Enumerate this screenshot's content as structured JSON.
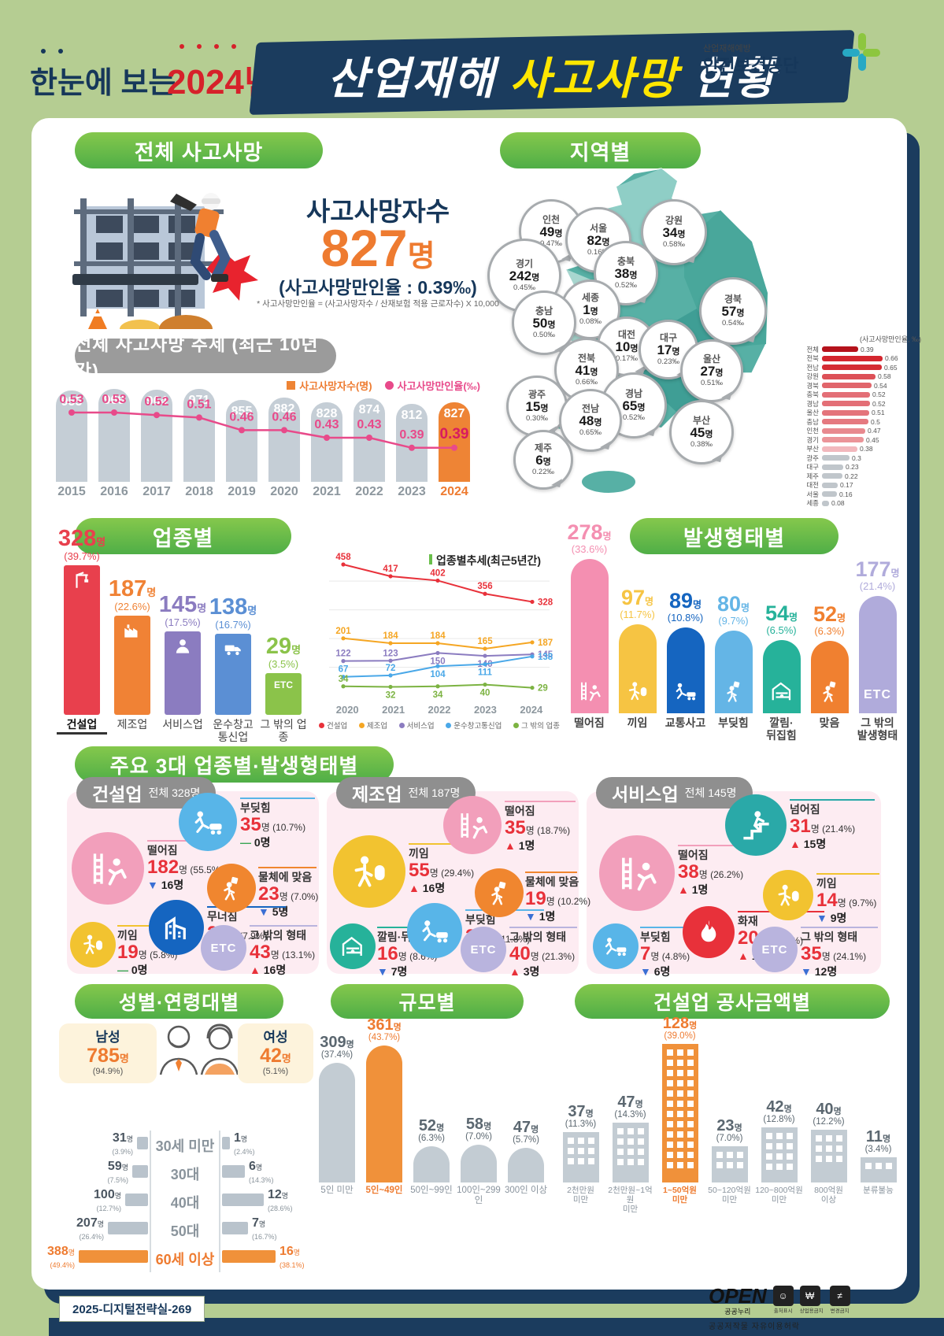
{
  "header": {
    "pre_title": "한눈에 보는",
    "year": "2024년",
    "title_part1": "산업재해 ",
    "title_part2": "사고사망",
    "title_part3": " 현황",
    "org_small": "산업재해예방",
    "org_name": "안전보건공단"
  },
  "total": {
    "section_title": "전체 사고사망",
    "label": "사고사망자수",
    "value": "827",
    "unit": "명",
    "rate_line": "(사고사망만인율 : 0.39‰)",
    "footnote": "* 사고사망만인율 = (사고사망자수 / 산재보험 적용 근로자수) X 10,000"
  },
  "region": {
    "section_title": "지역별",
    "callouts": [
      {
        "name": "인천",
        "count": "49",
        "rate": "0.47‰"
      },
      {
        "name": "서울",
        "count": "82",
        "rate": "0.16‰"
      },
      {
        "name": "강원",
        "count": "34",
        "rate": "0.58‰"
      },
      {
        "name": "경기",
        "count": "242",
        "rate": "0.45‰"
      },
      {
        "name": "충북",
        "count": "38",
        "rate": "0.52‰"
      },
      {
        "name": "세종",
        "count": "1",
        "rate": "0.08‰"
      },
      {
        "name": "충남",
        "count": "50",
        "rate": "0.50‰"
      },
      {
        "name": "대전",
        "count": "10",
        "rate": "0.17‰"
      },
      {
        "name": "대구",
        "count": "17",
        "rate": "0.23‰"
      },
      {
        "name": "경북",
        "count": "57",
        "rate": "0.54‰"
      },
      {
        "name": "전북",
        "count": "41",
        "rate": "0.66‰"
      },
      {
        "name": "울산",
        "count": "27",
        "rate": "0.51‰"
      },
      {
        "name": "광주",
        "count": "15",
        "rate": "0.30‰"
      },
      {
        "name": "경남",
        "count": "65",
        "rate": "0.52‰"
      },
      {
        "name": "전남",
        "count": "48",
        "rate": "0.65‰"
      },
      {
        "name": "부산",
        "count": "45",
        "rate": "0.38‰"
      },
      {
        "name": "제주",
        "count": "6",
        "rate": "0.22‰"
      }
    ],
    "unit": "명"
  },
  "trend": {
    "section_title": "전체 사고사망 추세 (최근 10년간)"
  },
  "sections": {
    "industry": "업종별",
    "accident_type": "발생형태별",
    "top3": "주요 3대 업종별·발생형태별",
    "gender_age": "성별·연령대별",
    "size": "규모별",
    "construction_cost": "건설업 공사금액별"
  },
  "labels": {
    "etc": "ETC",
    "unit": "명"
  },
  "top3": {
    "panels": [
      {
        "name": "건설업",
        "total": "전체 328명",
        "items": [
          {
            "label": "떨어짐",
            "value": "182",
            "pct": "(55.5%)",
            "dir": "down",
            "change": "16명",
            "icon": "falling",
            "color": "#f29fbb"
          },
          {
            "label": "부딪힘",
            "value": "35",
            "pct": "(10.7%)",
            "dir": "flat",
            "change": "0명",
            "icon": "bump",
            "color": "#58b5e8"
          },
          {
            "label": "물체에 맞음",
            "value": "23",
            "pct": "(7.0%)",
            "dir": "down",
            "change": "5명",
            "icon": "hit",
            "color": "#f0862f"
          },
          {
            "label": "무너짐",
            "value": "26",
            "pct": "(7.9%)",
            "dir": "down",
            "change": "1명",
            "icon": "collapse",
            "color": "#1565c0"
          },
          {
            "label": "끼임",
            "value": "19",
            "pct": "(5.8%)",
            "dir": "flat",
            "change": "0명",
            "icon": "pinch",
            "color": "#f2c330"
          },
          {
            "label": "그 밖의 형태",
            "value": "43",
            "pct": "(13.1%)",
            "dir": "up",
            "change": "16명",
            "icon": "etc",
            "color": "#b9b4de"
          }
        ]
      },
      {
        "name": "제조업",
        "total": "전체 187명",
        "items": [
          {
            "label": "끼임",
            "value": "55",
            "pct": "(29.4%)",
            "dir": "up",
            "change": "16명",
            "icon": "pinch",
            "color": "#f2c330"
          },
          {
            "label": "떨어짐",
            "value": "35",
            "pct": "(18.7%)",
            "dir": "up",
            "change": "1명",
            "icon": "falling",
            "color": "#f29fbb"
          },
          {
            "label": "물체에 맞음",
            "value": "19",
            "pct": "(10.2%)",
            "dir": "down",
            "change": "1명",
            "icon": "hit",
            "color": "#f0862f"
          },
          {
            "label": "부딪힘",
            "value": "22",
            "pct": "(11.8%)",
            "dir": "up",
            "change": "10명",
            "icon": "bump",
            "color": "#58b5e8"
          },
          {
            "label": "깔림·뒤집힘",
            "value": "16",
            "pct": "(8.6%)",
            "dir": "down",
            "change": "7명",
            "icon": "crush",
            "color": "#26b29a"
          },
          {
            "label": "그 밖의 형태",
            "value": "40",
            "pct": "(21.3%)",
            "dir": "up",
            "change": "3명",
            "icon": "etc",
            "color": "#b9b4de"
          }
        ]
      },
      {
        "name": "서비스업",
        "total": "전체 145명",
        "items": [
          {
            "label": "떨어짐",
            "value": "38",
            "pct": "(26.2%)",
            "dir": "up",
            "change": "1명",
            "icon": "falling",
            "color": "#f29fbb"
          },
          {
            "label": "넘어짐",
            "value": "31",
            "pct": "(21.4%)",
            "dir": "up",
            "change": "15명",
            "icon": "slip",
            "color": "#2aa9a8"
          },
          {
            "label": "끼임",
            "value": "14",
            "pct": "(9.7%)",
            "dir": "down",
            "change": "9명",
            "icon": "pinch",
            "color": "#f2c330"
          },
          {
            "label": "화재",
            "value": "20",
            "pct": "(13.8%)",
            "dir": "up",
            "change": "16명",
            "icon": "fire",
            "color": "#e8313a"
          },
          {
            "label": "부딪힘",
            "value": "7",
            "pct": "(4.8%)",
            "dir": "down",
            "change": "6명",
            "icon": "bump",
            "color": "#58b5e8"
          },
          {
            "label": "그 밖의 형태",
            "value": "35",
            "pct": "(24.1%)",
            "dir": "down",
            "change": "12명",
            "icon": "etc",
            "color": "#b9b4de"
          }
        ]
      }
    ]
  },
  "gender": {
    "male_label": "남성",
    "male_value": "785",
    "male_pct": "(94.9%)",
    "female_label": "여성",
    "female_value": "42",
    "female_pct": "(5.1%)",
    "unit": "명"
  },
  "footer": {
    "doc_id": "2025-디지털전략실-269",
    "open": "OPEN",
    "nuri": "공공누리",
    "caption": "공공저작물 자유이용허락",
    "icon_labels": [
      "출처표시",
      "상업용금지",
      "변경금지"
    ]
  },
  "chart_data": [
    {
      "id": "yearly_trend",
      "type": "bar+line",
      "title": "전체 사고사망 추세 (최근 10년간)",
      "categories": [
        "2015",
        "2016",
        "2017",
        "2018",
        "2019",
        "2020",
        "2021",
        "2022",
        "2023",
        "2024"
      ],
      "series": [
        {
          "name": "사고사망자수(명)",
          "type": "bar",
          "values": [
            955,
            969,
            964,
            971,
            855,
            882,
            828,
            874,
            812,
            827
          ],
          "color": "#c5ced6",
          "highlight_color": "#ee8435",
          "highlight_index": 9
        },
        {
          "name": "사고사망만인율(‰)",
          "type": "line",
          "values": [
            0.53,
            0.53,
            0.52,
            0.51,
            0.46,
            0.46,
            0.43,
            0.43,
            0.39,
            0.39
          ],
          "color": "#e84a8a"
        }
      ],
      "legend_position": "top-right"
    },
    {
      "id": "region_rate",
      "type": "bar",
      "title": "(사고사망만인율, ‰)",
      "orientation": "horizontal",
      "categories": [
        "전체",
        "전북",
        "전남",
        "강원",
        "경북",
        "충북",
        "경남",
        "울산",
        "충남",
        "인천",
        "경기",
        "부산",
        "광주",
        "대구",
        "제주",
        "대전",
        "서울",
        "세종"
      ],
      "values": [
        0.39,
        0.66,
        0.65,
        0.58,
        0.54,
        0.52,
        0.52,
        0.51,
        0.5,
        0.47,
        0.45,
        0.38,
        0.3,
        0.23,
        0.22,
        0.17,
        0.16,
        0.08
      ],
      "xlim": [
        0,
        0.7
      ]
    },
    {
      "id": "industry",
      "type": "bar",
      "title": "업종별",
      "categories": [
        "건설업",
        "제조업",
        "서비스업",
        "운수창고\n통신업",
        "그 밖의 업종"
      ],
      "values": [
        328,
        187,
        145,
        138,
        29
      ],
      "pcts": [
        "(39.7%)",
        "(22.6%)",
        "(17.5%)",
        "(16.7%)",
        "(3.5%)"
      ],
      "colors": [
        "#e8404d",
        "#f08235",
        "#8b7cc0",
        "#5b8fd4",
        "#8bc34a"
      ],
      "icons": [
        "crane",
        "factory",
        "service",
        "truck",
        "etc"
      ]
    },
    {
      "id": "industry_trend",
      "type": "line",
      "title": "업종별추세(최근5년간)",
      "x": [
        "2020",
        "2021",
        "2022",
        "2023",
        "2024"
      ],
      "series": [
        {
          "name": "건설업",
          "values": [
            458,
            417,
            402,
            356,
            328
          ],
          "color": "#e8313a"
        },
        {
          "name": "제조업",
          "values": [
            201,
            184,
            184,
            165,
            187
          ],
          "color": "#f5a623"
        },
        {
          "name": "서비스업",
          "values": [
            122,
            123,
            150,
            140,
            145
          ],
          "color": "#8b7cc0"
        },
        {
          "name": "운수창고통신업",
          "values": [
            67,
            72,
            104,
            111,
            138
          ],
          "color": "#4aa8e8"
        },
        {
          "name": "그 밖의 업종",
          "values": [
            34,
            32,
            34,
            40,
            29
          ],
          "color": "#7cb342"
        }
      ],
      "legend_position": "bottom",
      "grid": true
    },
    {
      "id": "accident_type",
      "type": "bar",
      "title": "발생형태별",
      "categories": [
        "떨어짐",
        "끼임",
        "교통사고",
        "부딪힘",
        "깔림·\n뒤집힘",
        "맞음",
        "그 밖의\n발생형태"
      ],
      "values": [
        278,
        97,
        89,
        80,
        54,
        52,
        177
      ],
      "pcts": [
        "(33.6%)",
        "(11.7%)",
        "(10.8%)",
        "(9.7%)",
        "(6.5%)",
        "(6.3%)",
        "(21.4%)"
      ],
      "colors": [
        "#f48fb1",
        "#f6c443",
        "#1565c0",
        "#64b5e6",
        "#26b29a",
        "#f08030",
        "#b0abdb"
      ],
      "icons": [
        "falling",
        "pinch",
        "bump",
        "hit",
        "crush",
        "hit",
        "etc"
      ]
    },
    {
      "id": "gender_age",
      "type": "pyramid",
      "categories": [
        "30세 미만",
        "30대",
        "40대",
        "50대",
        "60세 이상"
      ],
      "series": [
        {
          "name": "남성",
          "values": [
            31,
            59,
            100,
            207,
            388
          ],
          "pcts": [
            "(3.9%)",
            "(7.5%)",
            "(12.7%)",
            "(26.4%)",
            "(49.4%)"
          ]
        },
        {
          "name": "여성",
          "values": [
            1,
            6,
            12,
            7,
            16
          ],
          "pcts": [
            "(2.4%)",
            "(14.3%)",
            "(28.6%)",
            "(16.7%)",
            "(38.1%)"
          ]
        }
      ],
      "highlight_category": "60세 이상"
    },
    {
      "id": "size",
      "type": "bar",
      "title": "규모별",
      "categories": [
        "5인 미만",
        "5인~49인",
        "50인~99인",
        "100인~299인",
        "300인 이상"
      ],
      "values": [
        309,
        361,
        52,
        58,
        47
      ],
      "pcts": [
        "(37.4%)",
        "(43.7%)",
        "(6.3%)",
        "(7.0%)",
        "(5.7%)"
      ],
      "highlight_index": 1
    },
    {
      "id": "construction_cost",
      "type": "bar",
      "title": "건설업 공사금액별",
      "categories": [
        "2천만원\n미만",
        "2천만원~1억원\n미만",
        "1~50억원\n미만",
        "50~120억원\n미만",
        "120~800억원\n미만",
        "800억원\n이상",
        "분류불능"
      ],
      "values": [
        37,
        47,
        128,
        23,
        42,
        40,
        11
      ],
      "pcts": [
        "(11.3%)",
        "(14.3%)",
        "(39.0%)",
        "(7.0%)",
        "(12.8%)",
        "(12.2%)",
        "(3.4%)"
      ],
      "highlight_index": 2
    }
  ]
}
